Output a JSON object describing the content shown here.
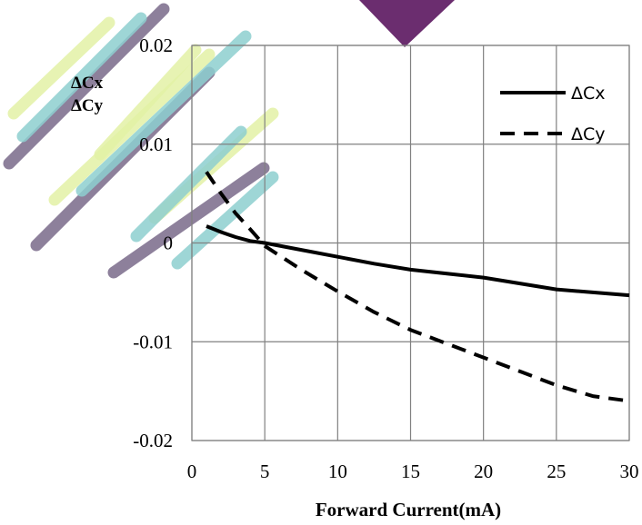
{
  "chart_data": {
    "type": "line",
    "xlabel": "Forward Current(mA)",
    "ylabel": [
      "ΔCx",
      "ΔCy"
    ],
    "xlim": [
      0,
      30
    ],
    "ylim": [
      -0.02,
      0.02
    ],
    "x_ticks": [
      "0",
      "5",
      "10",
      "15",
      "20",
      "25",
      "30"
    ],
    "y_ticks": [
      "0.02",
      "0.01",
      "0",
      "-0.01",
      "-0.02"
    ],
    "grid": true,
    "legend_position": "top-right",
    "series": [
      {
        "name": "ΔCx",
        "style": "solid",
        "x": [
          1,
          2,
          3,
          4,
          5,
          7.5,
          10,
          12.5,
          15,
          17.5,
          20,
          22.5,
          25,
          27.5,
          30
        ],
        "y": [
          0.0017,
          0.0011,
          0.0006,
          0.0002,
          0.0,
          -0.0007,
          -0.0014,
          -0.0021,
          -0.0027,
          -0.0031,
          -0.0035,
          -0.0041,
          -0.0047,
          -0.005,
          -0.0053
        ]
      },
      {
        "name": "ΔCy",
        "style": "dashed",
        "x": [
          1,
          2,
          3,
          4,
          5,
          7.5,
          10,
          12.5,
          15,
          17.5,
          20,
          22.5,
          25,
          27.5,
          30
        ],
        "y": [
          0.0072,
          0.005,
          0.003,
          0.0014,
          -0.0003,
          -0.0027,
          -0.0049,
          -0.007,
          -0.0088,
          -0.0102,
          -0.0116,
          -0.013,
          -0.0144,
          -0.0155,
          -0.016
        ]
      }
    ]
  },
  "decoration": {
    "watermark_colors": [
      "#7a6a8a",
      "#8ecfd0",
      "#e3f2a6"
    ],
    "top_marker_color": "#6b2d6f"
  }
}
